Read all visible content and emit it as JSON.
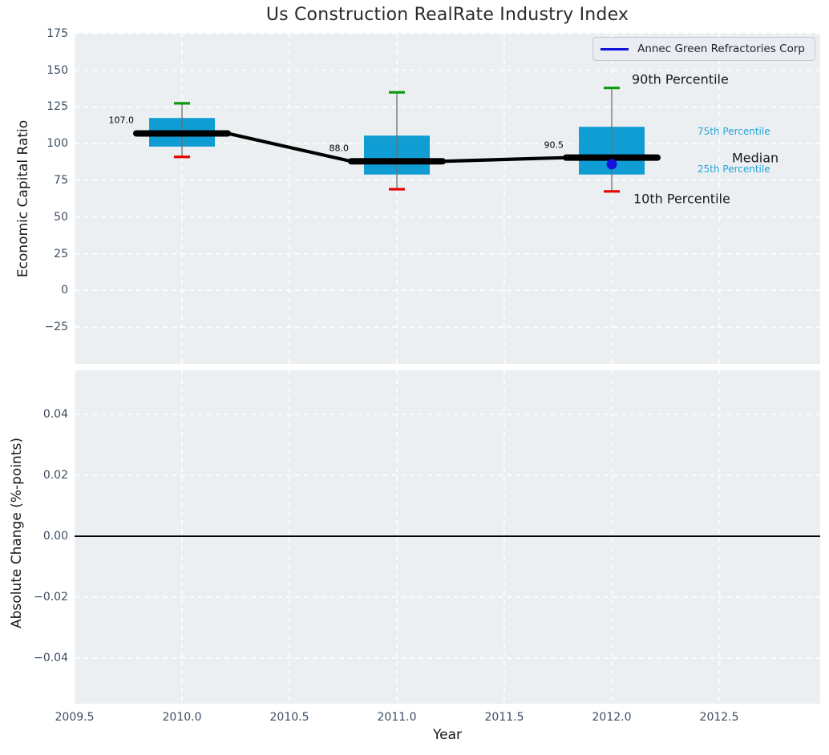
{
  "title": "Us Construction RealRate Industry Index",
  "legend": {
    "label": "Annec Green Refractories Corp"
  },
  "axes": {
    "top": {
      "ylabel": "Economic Capital Ratio",
      "y_ticks": [
        "175",
        "150",
        "125",
        "100",
        "75",
        "50",
        "25",
        "0",
        "−25"
      ],
      "y_tick_values": [
        175,
        150,
        125,
        100,
        75,
        50,
        25,
        0,
        -25
      ]
    },
    "bottom": {
      "ylabel": "Absolute Change (%-points)",
      "y_ticks": [
        "0.04",
        "0.02",
        "0.00",
        "−0.02",
        "−0.04"
      ],
      "y_tick_values": [
        0.04,
        0.02,
        0,
        -0.02,
        -0.04
      ]
    },
    "x": {
      "label": "Year",
      "ticks": [
        "2009.5",
        "2010.0",
        "2010.5",
        "2011.0",
        "2011.5",
        "2012.0",
        "2012.5"
      ],
      "tick_values": [
        2009.5,
        2010,
        2010.5,
        2011,
        2011.5,
        2012,
        2012.5
      ]
    }
  },
  "annotations": {
    "p90": "90th Percentile",
    "p75": "75th Percentile",
    "median": "Median",
    "p25": "25th Percentile",
    "p10": "10th Percentile"
  },
  "colors": {
    "panel_bg": "#eceff1",
    "grid_white": "#ffffff",
    "box_fill": "#0f9dd3",
    "cap_top_green": "#0a9a0a",
    "cap_bottom_red": "#e80000",
    "whisker_gray": "#6e6e6e",
    "median_black": "#000000",
    "company_blue": "#1313dc",
    "cyan_text": "#23a5d8",
    "tick_text": "#3d4c60",
    "zero_line": "#000000"
  },
  "chart_data": [
    {
      "type": "boxplot",
      "title": "Us Construction RealRate Industry Index",
      "xlabel": "Year",
      "ylabel": "Economic Capital Ratio",
      "xlim": [
        2009.5,
        2012.97
      ],
      "ylim": [
        -50,
        175.5
      ],
      "grid": true,
      "legend_position": "upper right",
      "series": [
        {
          "name": "Annec Green Refractories Corp",
          "points": [
            {
              "x": 2012,
              "y": 86
            }
          ]
        }
      ],
      "median_trend": {
        "x": [
          2010,
          2011,
          2012
        ],
        "y": [
          107.0,
          88.0,
          90.5
        ]
      },
      "boxes": [
        {
          "year": 2010,
          "p10": 91,
          "p25": 98,
          "median": 107.0,
          "p75": 117.5,
          "p90": 127.5,
          "median_label": "107.0"
        },
        {
          "year": 2011,
          "p10": 69,
          "p25": 79,
          "median": 88.0,
          "p75": 105.5,
          "p90": 135,
          "median_label": "88.0"
        },
        {
          "year": 2012,
          "p10": 67.5,
          "p25": 79,
          "median": 90.5,
          "p75": 111.5,
          "p90": 138,
          "median_label": "90.5",
          "company_value": 86
        }
      ]
    },
    {
      "type": "line",
      "ylabel": "Absolute Change (%-points)",
      "xlim": [
        2009.5,
        2012.97
      ],
      "ylim": [
        -0.055,
        0.0545
      ],
      "grid": true,
      "zero_line": 0.0,
      "values": []
    }
  ]
}
